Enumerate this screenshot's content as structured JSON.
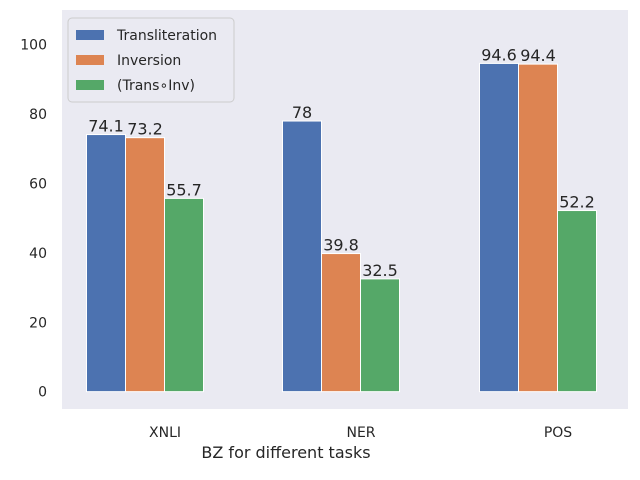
{
  "chart_data": {
    "type": "bar",
    "categories": [
      "XNLI",
      "NER",
      "POS"
    ],
    "series": [
      {
        "name": "Transliteration",
        "values": [
          74.1,
          78,
          94.6
        ],
        "color": "#4c72b0"
      },
      {
        "name": "Inversion",
        "values": [
          73.2,
          39.8,
          94.4
        ],
        "color": "#dd8452"
      },
      {
        "name": "(Trans∘Inv)",
        "values": [
          55.7,
          32.5,
          52.2
        ],
        "color": "#55a868"
      }
    ],
    "data_labels": [
      [
        "74.1",
        "78",
        "94.6"
      ],
      [
        "73.2",
        "39.8",
        "94.4"
      ],
      [
        "55.7",
        "32.5",
        "52.2"
      ]
    ],
    "xlabel": "BZ for different tasks",
    "ylabel": "",
    "ylim": [
      -5,
      110
    ],
    "yticks": [
      0,
      20,
      40,
      60,
      80,
      100
    ],
    "grid": false,
    "legend_position": "upper-left",
    "background_color": "#eaeaf2"
  }
}
